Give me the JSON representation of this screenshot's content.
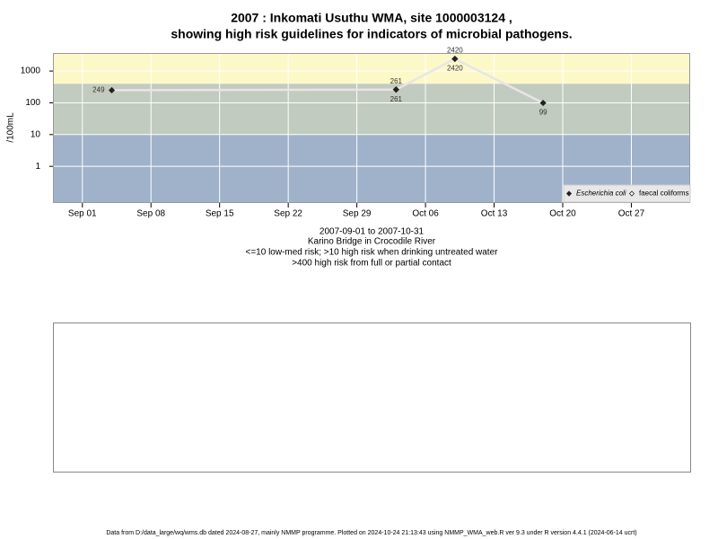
{
  "chart_data": {
    "type": "line",
    "title": "2007 : Inkomati Usuthu WMA, site 1000003124 ,",
    "subtitle": "showing high risk guidelines for indicators of microbial pathogens.",
    "y_label": "/100mL",
    "caption": [
      "2007-09-01 to 2007-10-31",
      "Karino Bridge in Crocodile River",
      "<=10 low-med risk; >10 high risk when drinking untreated water",
      ">400 high risk from full or partial contact"
    ],
    "footer": "Data from D:/data_large/wq/wms.db dated 2024-08-27, mainly NMMP programme. Plotted on 2024-10-24 21:13:43 using NMMP_WMA_web.R ver 9.3 under R version 4.4.1 (2024-06-14 ucrt)",
    "log_y": true,
    "grid": true,
    "legend": "bottom-right",
    "ylim": [
      0.07,
      3700
    ],
    "yticks": [
      1,
      10,
      100,
      1000
    ],
    "xlim": [
      "2007-08-29",
      "2007-11-02"
    ],
    "xticks": [
      {
        "value": "2007-09-01",
        "label": "Sep 01"
      },
      {
        "value": "2007-09-08",
        "label": "Sep 08"
      },
      {
        "value": "2007-09-15",
        "label": "Sep 15"
      },
      {
        "value": "2007-09-22",
        "label": "Sep 22"
      },
      {
        "value": "2007-09-29",
        "label": "Sep 29"
      },
      {
        "value": "2007-10-06",
        "label": "Oct 06"
      },
      {
        "value": "2007-10-13",
        "label": "Oct 13"
      },
      {
        "value": "2007-10-20",
        "label": "Oct 20"
      },
      {
        "value": "2007-10-27",
        "label": "Oct 27"
      }
    ],
    "bands": [
      {
        "upper": 10,
        "color": "#a0b2ca"
      },
      {
        "lower": 10,
        "upper": 400,
        "color": "#c2cbbf"
      },
      {
        "lower": 400,
        "color": "#fdf8c8"
      }
    ],
    "line_color": "#e6e6e6",
    "series": [
      {
        "name": "Escherichia coli",
        "color": "#222222",
        "marker": "filled",
        "x": [
          "2007-09-04",
          "2007-10-03",
          "2007-10-09",
          "2007-10-18"
        ],
        "values": [
          249,
          261,
          2420,
          99
        ]
      },
      {
        "name": "faecal coliforms",
        "color": "#222222",
        "marker": "open",
        "x": [
          "2007-10-03",
          "2007-10-09"
        ],
        "values": [
          261,
          2420
        ]
      }
    ]
  }
}
